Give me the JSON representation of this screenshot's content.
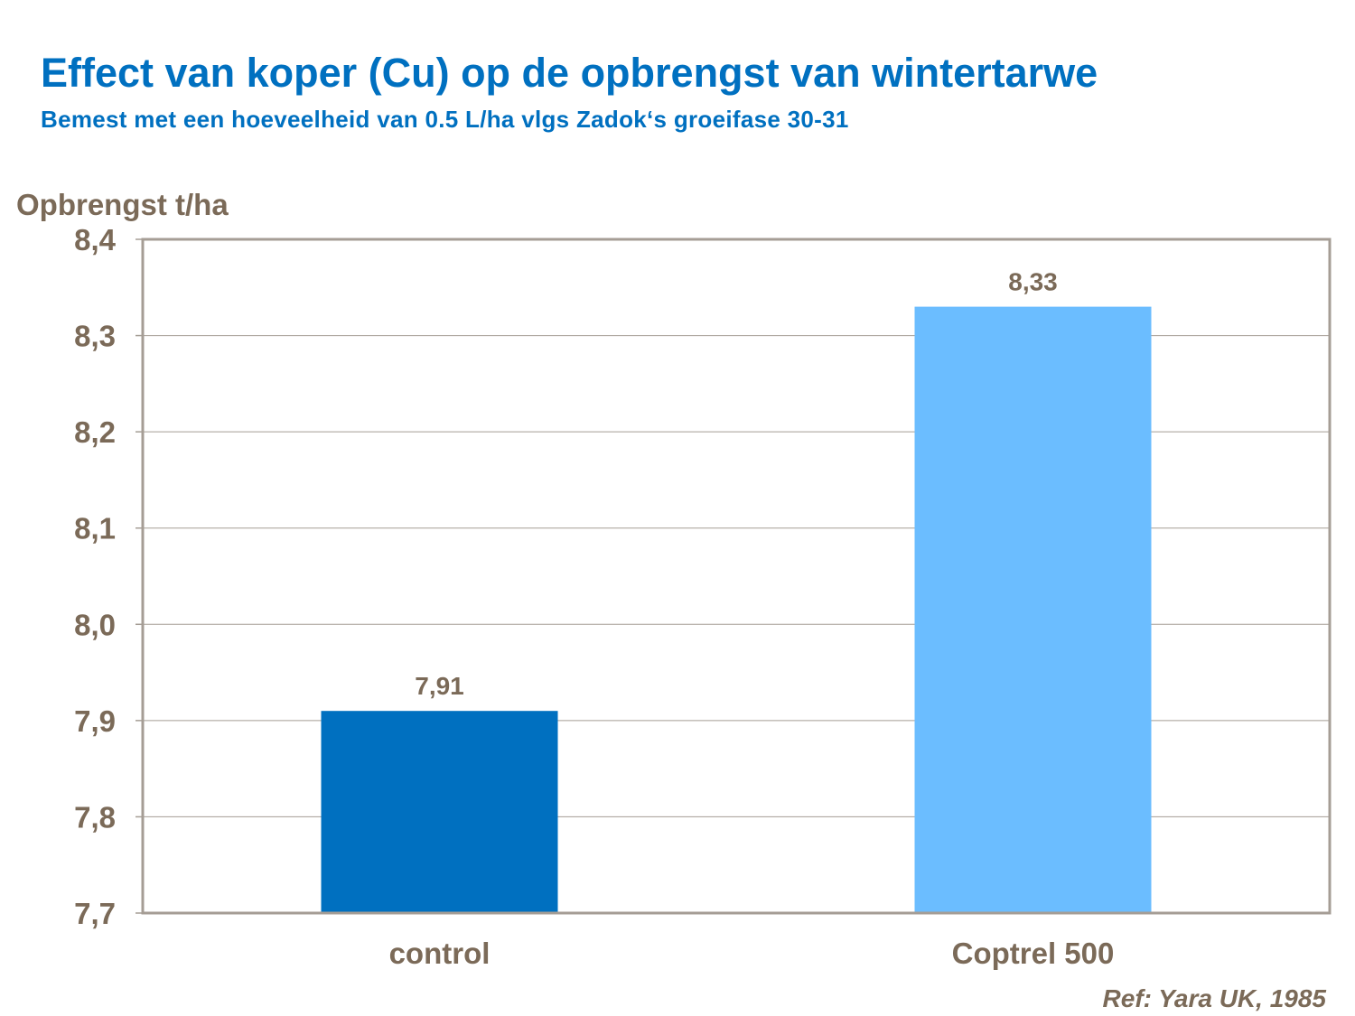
{
  "chart_data": {
    "type": "bar",
    "title": "Effect van koper (Cu) op de opbrengst van wintertarwe",
    "subtitle": "Bemest met een hoeveelheid van 0.5 L/ha vlgs Zadok‘s groeifase 30-31",
    "xlabel": "",
    "ylabel": "Opbrengst t/ha",
    "categories": [
      "control",
      "Coptrel 500"
    ],
    "values": [
      7.91,
      8.33
    ],
    "data_labels": [
      "7,91",
      "8,33"
    ],
    "bar_colors": [
      "#0070c0",
      "#6bbdff"
    ],
    "ylim": [
      7.7,
      8.4
    ],
    "yticks": [
      7.7,
      7.8,
      7.9,
      8.0,
      8.1,
      8.2,
      8.3,
      8.4
    ],
    "ytick_labels": [
      "7,7",
      "7,8",
      "7,9",
      "8,0",
      "8,1",
      "8,2",
      "8,3",
      "8,4"
    ],
    "grid": true,
    "legend": "none",
    "annotation": "Ref: Yara UK, 1985"
  }
}
